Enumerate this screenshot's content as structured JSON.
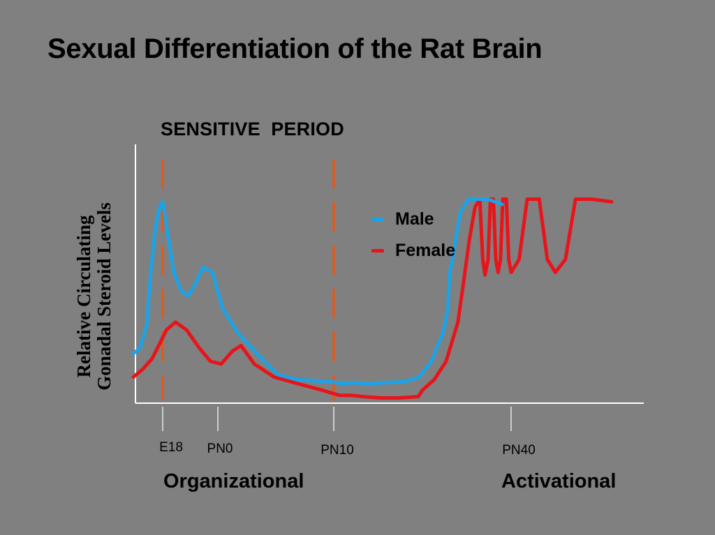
{
  "title": "Sexual Differentiation of the Rat Brain",
  "chart_data": {
    "type": "line",
    "period_label": "SENSITIVE  PERIOD",
    "ylabel_lines": [
      "Relative Circulating",
      "Gonadal Steroid Levels"
    ],
    "x_ticks": [
      "E18",
      "PN0",
      "PN10",
      "PN40"
    ],
    "phase_labels": [
      "Organizational",
      "Activational"
    ],
    "sensitive_period": [
      "E18",
      "PN10"
    ],
    "y_range": [
      0,
      1
    ],
    "grid": false,
    "legend_position": "center-right",
    "series": [
      {
        "name": "Male",
        "color": "#1aa3e8",
        "points": [
          [
            -2.2,
            0.19
          ],
          [
            -1.7,
            0.21
          ],
          [
            -1.2,
            0.3
          ],
          [
            -0.9,
            0.5
          ],
          [
            -0.6,
            0.65
          ],
          [
            -0.3,
            0.74
          ],
          [
            0,
            0.77
          ],
          [
            0.2,
            0.68
          ],
          [
            0.6,
            0.5
          ],
          [
            1.0,
            0.43
          ],
          [
            1.4,
            0.41
          ],
          [
            1.8,
            0.46
          ],
          [
            2.2,
            0.52
          ],
          [
            2.7,
            0.5
          ],
          [
            3.3,
            0.36
          ],
          [
            4.2,
            0.27
          ],
          [
            5.5,
            0.18
          ],
          [
            6.6,
            0.11
          ],
          [
            7.8,
            0.09
          ],
          [
            9,
            0.085
          ],
          [
            10,
            0.08
          ],
          [
            11.3,
            0.075
          ],
          [
            13.6,
            0.078
          ],
          [
            15.9,
            0.074
          ],
          [
            18.2,
            0.078
          ],
          [
            22,
            0.082
          ],
          [
            24.5,
            0.1
          ],
          [
            26.5,
            0.16
          ],
          [
            28.5,
            0.27
          ],
          [
            29.3,
            0.36
          ],
          [
            29.6,
            0.5
          ],
          [
            30,
            0.54
          ],
          [
            31.4,
            0.73
          ],
          [
            32.8,
            0.78
          ],
          [
            36,
            0.78
          ],
          [
            38.5,
            0.76
          ]
        ]
      },
      {
        "name": "Female",
        "color": "#e8141a",
        "points": [
          [
            -2.2,
            0.1
          ],
          [
            -1.5,
            0.13
          ],
          [
            -0.8,
            0.17
          ],
          [
            -0.3,
            0.22
          ],
          [
            0.2,
            0.28
          ],
          [
            0.7,
            0.31
          ],
          [
            1.3,
            0.28
          ],
          [
            2.0,
            0.21
          ],
          [
            2.6,
            0.16
          ],
          [
            3.2,
            0.15
          ],
          [
            3.9,
            0.2
          ],
          [
            4.4,
            0.22
          ],
          [
            5.2,
            0.15
          ],
          [
            6.4,
            0.1
          ],
          [
            7.8,
            0.075
          ],
          [
            9,
            0.055
          ],
          [
            11,
            0.03
          ],
          [
            13,
            0.03
          ],
          [
            15,
            0.025
          ],
          [
            18,
            0.02
          ],
          [
            21,
            0.02
          ],
          [
            24.3,
            0.025
          ],
          [
            25,
            0.05
          ],
          [
            27,
            0.09
          ],
          [
            29,
            0.16
          ],
          [
            31,
            0.31
          ],
          [
            32,
            0.47
          ],
          [
            32.9,
            0.62
          ],
          [
            33.9,
            0.75
          ],
          [
            34.7,
            0.78
          ]
        ]
      },
      {
        "name": "",
        "color": "#e8141a",
        "points": [
          [
            34.7,
            0.78
          ],
          [
            35.2,
            0.55
          ],
          [
            35.6,
            0.49
          ],
          [
            36.1,
            0.55
          ],
          [
            36.5,
            0.78
          ],
          [
            37.0,
            0.78
          ],
          [
            37.4,
            0.55
          ],
          [
            37.8,
            0.5
          ],
          [
            38.2,
            0.55
          ],
          [
            38.6,
            0.78
          ],
          [
            39.2,
            0.78
          ],
          [
            39.6,
            0.55
          ],
          [
            40.0,
            0.5
          ],
          [
            40.4,
            0.55
          ],
          [
            40.8,
            0.78
          ],
          [
            41.4,
            0.78
          ],
          [
            41.8,
            0.55
          ],
          [
            42.2,
            0.5
          ],
          [
            42.7,
            0.55
          ],
          [
            43.2,
            0.78
          ],
          [
            44.0,
            0.78
          ],
          [
            45.0,
            0.77
          ]
        ]
      }
    ]
  }
}
